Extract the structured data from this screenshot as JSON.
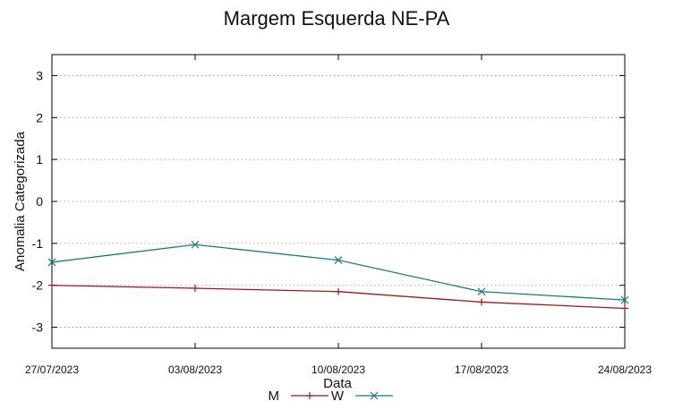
{
  "chart_data": {
    "type": "line",
    "title": "Margem Esquerda NE-PA",
    "xlabel": "Data",
    "ylabel": "Anomalia Categorizada",
    "categories": [
      "27/07/2023",
      "03/08/2023",
      "10/08/2023",
      "17/08/2023",
      "24/08/2023"
    ],
    "ylim": [
      -3.5,
      3.5
    ],
    "yticks": [
      3,
      2,
      1,
      0,
      -1,
      -2,
      -3
    ],
    "grid": true,
    "legend": "bottom-center",
    "series": [
      {
        "name": "M",
        "color": "#a01818",
        "marker": "plus",
        "values": [
          -2.0,
          -2.07,
          -2.15,
          -2.4,
          -2.55
        ]
      },
      {
        "name": "W",
        "color": "#1a7a7a",
        "marker": "cross",
        "values": [
          -1.45,
          -1.03,
          -1.4,
          -2.15,
          -2.35
        ]
      }
    ]
  }
}
